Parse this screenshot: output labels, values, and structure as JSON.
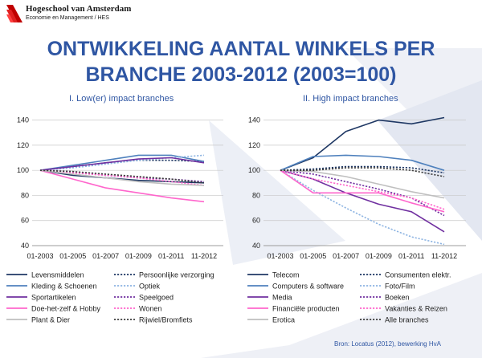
{
  "header": {
    "institution": "Hogeschool van Amsterdam",
    "faculty": "Economie en Management / HES",
    "logo_icon": "hva-wing-logo-icon"
  },
  "title_line1": "ONTWIKKELING AANTAL WINKELS PER",
  "title_line2": "BRANCHE 2003-2012 (2003=100)",
  "source": "Bron: Locatus (2012), bewerking HvA",
  "colors": {
    "title": "#2f56a3",
    "background_decoration": "#e7eaf3"
  },
  "chart_data": [
    {
      "type": "line",
      "title": "I. Low(er) impact branches",
      "x": [
        "01-2003",
        "01-2005",
        "01-2007",
        "01-2009",
        "01-2011",
        "11-2012"
      ],
      "ylim": [
        40,
        150
      ],
      "yticks": [
        40,
        60,
        80,
        100,
        120,
        140
      ],
      "grid": "horizontal",
      "legend_position": "bottom",
      "series": [
        {
          "name": "Levensmiddelen",
          "color": "#1f3864",
          "dashed": false,
          "values": [
            100,
            96,
            94,
            92,
            91,
            90
          ]
        },
        {
          "name": "Persoonlijke verzorging",
          "color": "#1f3864",
          "dashed": true,
          "values": [
            100,
            103,
            106,
            108,
            108,
            107
          ]
        },
        {
          "name": "Kleding & Schoenen",
          "color": "#4f81bd",
          "dashed": false,
          "values": [
            100,
            104,
            108,
            112,
            112,
            107
          ]
        },
        {
          "name": "Optiek",
          "color": "#8db4e2",
          "dashed": true,
          "values": [
            100,
            102,
            105,
            108,
            110,
            112
          ]
        },
        {
          "name": "Sportartikelen",
          "color": "#7030a0",
          "dashed": false,
          "values": [
            100,
            103,
            106,
            109,
            110,
            106
          ]
        },
        {
          "name": "Speelgoed",
          "color": "#7030a0",
          "dashed": true,
          "values": [
            100,
            99,
            96,
            94,
            93,
            91
          ]
        },
        {
          "name": "Doe-het-zelf & Hobby",
          "color": "#ff66cc",
          "dashed": false,
          "values": [
            100,
            93,
            86,
            82,
            78,
            75
          ]
        },
        {
          "name": "Wonen",
          "color": "#ff66cc",
          "dashed": true,
          "values": [
            100,
            98,
            96,
            94,
            91,
            88
          ]
        },
        {
          "name": "Plant & Dier",
          "color": "#bfbfbf",
          "dashed": false,
          "values": [
            100,
            97,
            94,
            91,
            89,
            88
          ]
        },
        {
          "name": "Rijwiel/Bromfiets",
          "color": "#404040",
          "dashed": true,
          "values": [
            100,
            99,
            97,
            95,
            93,
            90
          ]
        }
      ]
    },
    {
      "type": "line",
      "title": "II. High impact branches",
      "x": [
        "01-2003",
        "01-2005",
        "01-2007",
        "01-2009",
        "01-2011",
        "11-2012"
      ],
      "ylim": [
        40,
        150
      ],
      "yticks": [
        40,
        60,
        80,
        100,
        120,
        140
      ],
      "grid": "horizontal",
      "legend_position": "bottom",
      "series": [
        {
          "name": "Telecom",
          "color": "#1f3864",
          "dashed": false,
          "values": [
            100,
            110,
            131,
            140,
            137,
            142
          ]
        },
        {
          "name": "Consumenten elektr.",
          "color": "#1f3864",
          "dashed": true,
          "values": [
            100,
            101,
            103,
            103,
            102,
            98
          ]
        },
        {
          "name": "Computers & software",
          "color": "#4f81bd",
          "dashed": false,
          "values": [
            100,
            111,
            112,
            111,
            108,
            100
          ]
        },
        {
          "name": "Foto/Film",
          "color": "#8db4e2",
          "dashed": true,
          "values": [
            100,
            84,
            70,
            57,
            47,
            41
          ]
        },
        {
          "name": "Media",
          "color": "#7030a0",
          "dashed": false,
          "values": [
            100,
            93,
            82,
            73,
            67,
            51
          ]
        },
        {
          "name": "Boeken",
          "color": "#7030a0",
          "dashed": true,
          "values": [
            100,
            97,
            91,
            85,
            78,
            64
          ]
        },
        {
          "name": "Financiële producten",
          "color": "#ff66cc",
          "dashed": false,
          "values": [
            100,
            82,
            82,
            82,
            74,
            67
          ]
        },
        {
          "name": "Vakanties & Reizen",
          "color": "#ff66cc",
          "dashed": true,
          "values": [
            100,
            93,
            88,
            83,
            78,
            69
          ]
        },
        {
          "name": "Erotica",
          "color": "#bfbfbf",
          "dashed": false,
          "values": [
            100,
            99,
            95,
            89,
            83,
            78
          ]
        },
        {
          "name": "Alle branches",
          "color": "#404040",
          "dashed": true,
          "values": [
            100,
            100,
            102,
            102,
            100,
            95
          ]
        }
      ]
    }
  ]
}
